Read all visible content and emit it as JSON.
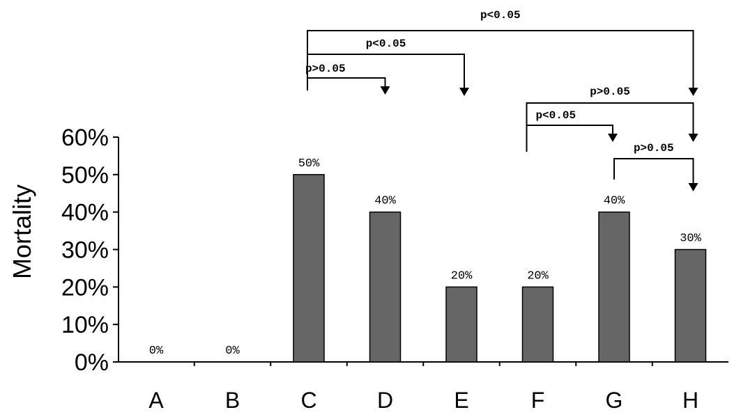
{
  "chart_data": {
    "type": "bar",
    "categories": [
      "A",
      "B",
      "C",
      "D",
      "E",
      "F",
      "G",
      "H"
    ],
    "values": [
      0,
      0,
      50,
      40,
      20,
      20,
      40,
      30
    ],
    "value_labels": [
      "0%",
      "0%",
      "50%",
      "40%",
      "20%",
      "20%",
      "40%",
      "30%"
    ],
    "ylabel": "Mortality",
    "ylim": [
      0,
      60
    ],
    "yticks": [
      {
        "value": 0,
        "label": "0%"
      },
      {
        "value": 10,
        "label": "10%"
      },
      {
        "value": 20,
        "label": "20%"
      },
      {
        "value": 30,
        "label": "30%"
      },
      {
        "value": 40,
        "label": "40%"
      },
      {
        "value": 50,
        "label": "50%"
      },
      {
        "value": 60,
        "label": "60%"
      }
    ],
    "bar_color": "#666666",
    "grid": false,
    "comparisons": [
      {
        "from": "C",
        "to": "H",
        "label": "p<0.05"
      },
      {
        "from": "C",
        "to": "E",
        "label": "p<0.05"
      },
      {
        "from": "C",
        "to": "D",
        "label": "p>0.05"
      },
      {
        "from": "F",
        "to": "H",
        "label": "p>0.05"
      },
      {
        "from": "F",
        "to": "G",
        "label": "p<0.05"
      },
      {
        "from": "G",
        "to": "H",
        "label": "p>0.05"
      }
    ]
  }
}
